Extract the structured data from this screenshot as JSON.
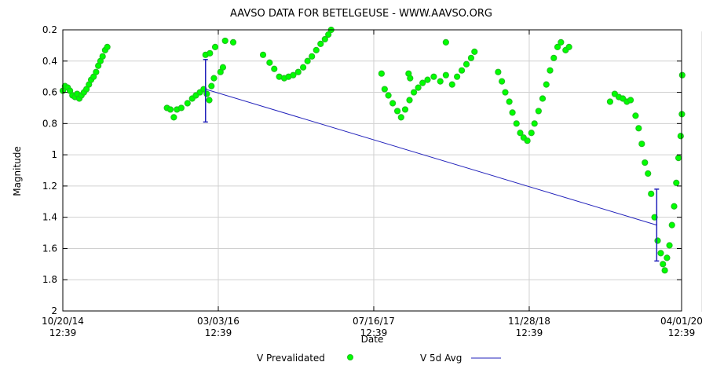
{
  "chart_data": {
    "type": "scatter",
    "title": "AAVSO DATA FOR BETELGEUSE - WWW.AAVSO.ORG",
    "xlabel": "Date",
    "ylabel": "Magnitude",
    "ylim": [
      2,
      0.2
    ],
    "y_inverted": true,
    "y_ticks": [
      "0.2",
      "0.4",
      "0.6",
      "0.8",
      "1",
      "1.2",
      "1.4",
      "1.6",
      "1.8",
      "2"
    ],
    "x_ticks": [
      {
        "date": "10/20/14",
        "time": "12:39"
      },
      {
        "date": "03/03/16",
        "time": "12:39"
      },
      {
        "date": "07/16/17",
        "time": "12:39"
      },
      {
        "date": "11/28/18",
        "time": "12:39"
      },
      {
        "date": "04/01/20",
        "time": "12:39"
      }
    ],
    "grid": true,
    "legend_placement": "bottom-center",
    "colors": {
      "prevalidated": "#00ff00",
      "prevalidated_edge": "#22bb22",
      "avg": "#2222bb",
      "grid": "#d0d0d0",
      "axis": "#000000"
    },
    "series": [
      {
        "name": "V Prevalidated",
        "marker": "circle",
        "points": [
          [
            "10/20/14",
            0.59
          ],
          [
            "10/27/14",
            0.56
          ],
          [
            "11/05/14",
            0.57
          ],
          [
            "11/12/14",
            0.59
          ],
          [
            "11/20/14",
            0.62
          ],
          [
            "11/28/14",
            0.63
          ],
          [
            "12/05/14",
            0.61
          ],
          [
            "12/12/14",
            0.64
          ],
          [
            "12/19/14",
            0.62
          ],
          [
            "12/27/14",
            0.6
          ],
          [
            "01/04/15",
            0.58
          ],
          [
            "01/12/15",
            0.55
          ],
          [
            "01/19/15",
            0.52
          ],
          [
            "01/27/15",
            0.5
          ],
          [
            "02/04/15",
            0.47
          ],
          [
            "02/11/15",
            0.43
          ],
          [
            "02/18/15",
            0.4
          ],
          [
            "02/25/15",
            0.37
          ],
          [
            "03/05/15",
            0.33
          ],
          [
            "03/12/15",
            0.31
          ],
          [
            "09/20/15",
            0.7
          ],
          [
            "10/01/15",
            0.71
          ],
          [
            "10/12/15",
            0.76
          ],
          [
            "10/22/15",
            0.71
          ],
          [
            "11/05/15",
            0.7
          ],
          [
            "11/25/15",
            0.67
          ],
          [
            "12/10/15",
            0.64
          ],
          [
            "12/22/15",
            0.62
          ],
          [
            "01/04/16",
            0.6
          ],
          [
            "01/16/16",
            0.58
          ],
          [
            "01/26/16",
            0.61
          ],
          [
            "02/03/16",
            0.65
          ],
          [
            "02/10/16",
            0.56
          ],
          [
            "02/18/16",
            0.51
          ],
          [
            "01/22/16",
            0.36
          ],
          [
            "02/05/16",
            0.35
          ],
          [
            "02/22/16",
            0.31
          ],
          [
            "03/10/16",
            0.47
          ],
          [
            "03/18/16",
            0.44
          ],
          [
            "03/25/16",
            0.27
          ],
          [
            "04/20/16",
            0.28
          ],
          [
            "07/25/16",
            0.36
          ],
          [
            "08/15/16",
            0.41
          ],
          [
            "08/30/16",
            0.45
          ],
          [
            "09/15/16",
            0.5
          ],
          [
            "10/01/16",
            0.51
          ],
          [
            "10/15/16",
            0.5
          ],
          [
            "10/30/16",
            0.49
          ],
          [
            "11/15/16",
            0.47
          ],
          [
            "12/01/16",
            0.44
          ],
          [
            "12/15/16",
            0.4
          ],
          [
            "12/29/16",
            0.37
          ],
          [
            "01/12/17",
            0.33
          ],
          [
            "01/26/17",
            0.29
          ],
          [
            "02/09/17",
            0.26
          ],
          [
            "02/20/17",
            0.23
          ],
          [
            "03/01/17",
            0.2
          ],
          [
            "08/10/17",
            0.48
          ],
          [
            "08/20/17",
            0.58
          ],
          [
            "09/01/17",
            0.62
          ],
          [
            "09/15/17",
            0.67
          ],
          [
            "09/30/17",
            0.72
          ],
          [
            "10/12/17",
            0.76
          ],
          [
            "10/25/17",
            0.71
          ],
          [
            "11/08/17",
            0.65
          ],
          [
            "11/22/17",
            0.6
          ],
          [
            "12/06/17",
            0.57
          ],
          [
            "12/20/17",
            0.54
          ],
          [
            "11/05/17",
            0.48
          ],
          [
            "11/10/17",
            0.51
          ],
          [
            "01/05/18",
            0.52
          ],
          [
            "01/25/18",
            0.5
          ],
          [
            "02/15/18",
            0.53
          ],
          [
            "03/05/18",
            0.49
          ],
          [
            "03/05/18",
            0.28
          ],
          [
            "03/25/18",
            0.55
          ],
          [
            "04/10/18",
            0.5
          ],
          [
            "04/25/18",
            0.46
          ],
          [
            "05/10/18",
            0.42
          ],
          [
            "05/25/18",
            0.38
          ],
          [
            "06/05/18",
            0.34
          ],
          [
            "08/20/18",
            0.47
          ],
          [
            "09/01/18",
            0.53
          ],
          [
            "09/12/18",
            0.6
          ],
          [
            "09/25/18",
            0.66
          ],
          [
            "10/05/18",
            0.73
          ],
          [
            "10/18/18",
            0.8
          ],
          [
            "10/30/18",
            0.86
          ],
          [
            "11/10/18",
            0.89
          ],
          [
            "11/22/18",
            0.91
          ],
          [
            "12/05/18",
            0.86
          ],
          [
            "12/15/18",
            0.8
          ],
          [
            "12/28/18",
            0.72
          ],
          [
            "01/10/19",
            0.64
          ],
          [
            "01/22/19",
            0.55
          ],
          [
            "02/03/19",
            0.46
          ],
          [
            "02/15/19",
            0.38
          ],
          [
            "02/27/19",
            0.31
          ],
          [
            "03/10/19",
            0.28
          ],
          [
            "03/25/19",
            0.33
          ],
          [
            "04/05/19",
            0.31
          ],
          [
            "08/15/19",
            0.66
          ],
          [
            "08/30/19",
            0.61
          ],
          [
            "09/12/19",
            0.63
          ],
          [
            "09/25/19",
            0.64
          ],
          [
            "10/08/19",
            0.66
          ],
          [
            "10/20/19",
            0.65
          ],
          [
            "11/05/19",
            0.75
          ],
          [
            "11/15/19",
            0.83
          ],
          [
            "11/25/19",
            0.93
          ],
          [
            "12/05/19",
            1.05
          ],
          [
            "12/15/19",
            1.12
          ],
          [
            "12/25/19",
            1.25
          ],
          [
            "01/05/20",
            1.4
          ],
          [
            "01/15/20",
            1.55
          ],
          [
            "01/25/20",
            1.63
          ],
          [
            "02/01/20",
            1.7
          ],
          [
            "02/07/20",
            1.74
          ],
          [
            "02/14/20",
            1.66
          ],
          [
            "02/22/20",
            1.58
          ],
          [
            "03/01/20",
            1.45
          ],
          [
            "03/08/20",
            1.33
          ],
          [
            "03/15/20",
            1.18
          ],
          [
            "03/22/20",
            1.02
          ],
          [
            "03/29/20",
            0.88
          ],
          [
            "04/02/20",
            0.74
          ],
          [
            "04/03/20",
            0.49
          ]
        ]
      },
      {
        "name": "V 5d Avg",
        "marker": "line",
        "points": [
          [
            "01/22/16",
            0.58
          ],
          [
            "01/12/20",
            1.45
          ]
        ],
        "error_bars": [
          {
            "date": "01/22/16",
            "low": 0.39,
            "high": 0.79
          },
          {
            "date": "01/12/20",
            "low": 1.22,
            "high": 1.68
          }
        ]
      }
    ]
  }
}
